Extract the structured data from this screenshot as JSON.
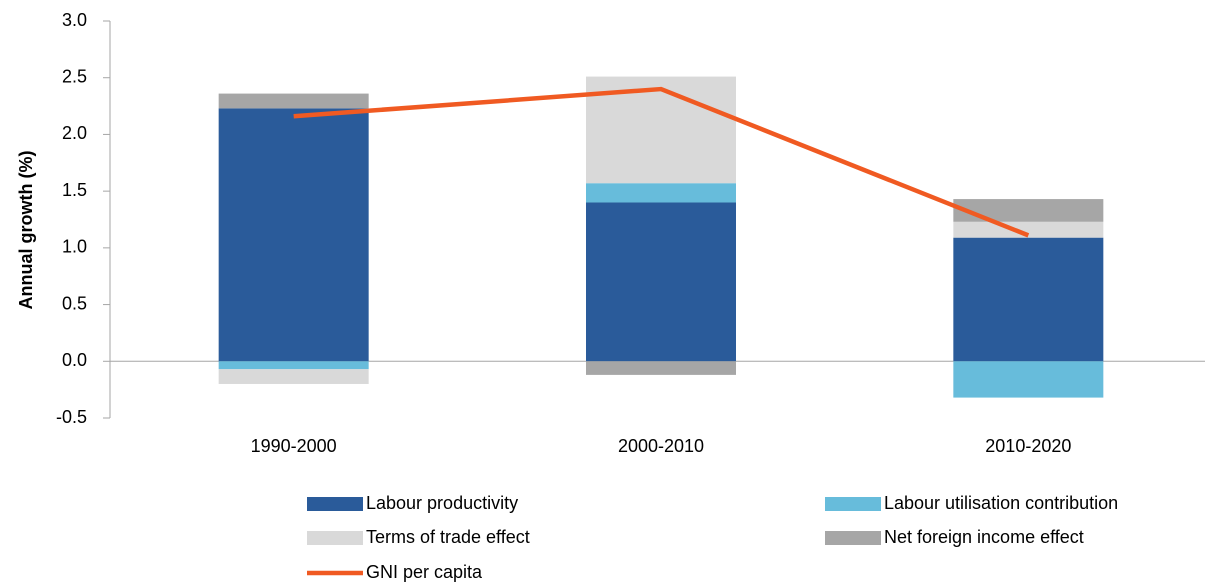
{
  "chart_data": {
    "type": "bar",
    "stacked": true,
    "categories": [
      "1990-2000",
      "2000-2010",
      "2010-2020"
    ],
    "ylabel": "Annual growth (%)",
    "ylim": [
      -0.5,
      3.0
    ],
    "yticks": [
      "3.0",
      "2.5",
      "2.0",
      "1.5",
      "1.0",
      "0.5",
      "0.0",
      "-0.5"
    ],
    "series": [
      {
        "name": "Labour productivity",
        "color": "#2a5b9a",
        "values": [
          2.23,
          1.4,
          1.09
        ]
      },
      {
        "name": "Labour utilisation contribution",
        "color": "#67bcdb",
        "values": [
          -0.07,
          0.17,
          -0.32
        ]
      },
      {
        "name": "Terms of trade effect",
        "color": "#d9d9d9",
        "values": [
          -0.13,
          0.94,
          0.14
        ]
      },
      {
        "name": "Net foreign income effect",
        "color": "#a6a6a6",
        "values": [
          0.13,
          -0.12,
          0.2
        ]
      }
    ],
    "line": {
      "name": "GNI per capita",
      "color": "#f05a22",
      "values": [
        2.16,
        2.4,
        1.11
      ]
    },
    "legend_position": "bottom"
  }
}
